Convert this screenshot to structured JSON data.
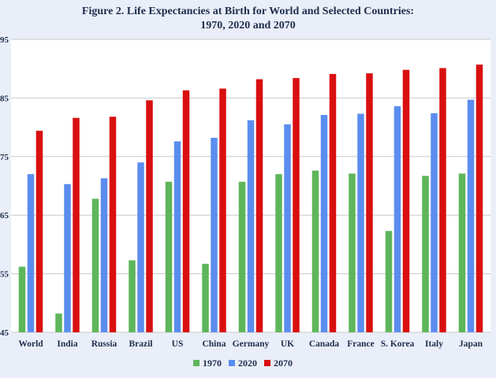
{
  "chart_data": {
    "type": "bar",
    "title_line1": "Figure 2. Life Expectancies at Birth for World and Selected Countries:",
    "title_line2": "1970, 2020 and 2070",
    "categories": [
      "World",
      "India",
      "Russia",
      "Brazil",
      "US",
      "China",
      "Germany",
      "UK",
      "Canada",
      "France",
      "S. Korea",
      "Italy",
      "Japan"
    ],
    "series": [
      {
        "name": "1970",
        "color": "#5eb65b",
        "values": [
          56.2,
          48.2,
          67.8,
          57.3,
          70.7,
          56.7,
          70.7,
          72.0,
          72.6,
          72.1,
          62.3,
          71.7,
          72.1
        ]
      },
      {
        "name": "2020",
        "color": "#5b8def",
        "values": [
          72.0,
          70.3,
          71.3,
          74.0,
          77.6,
          78.2,
          81.2,
          80.5,
          82.1,
          82.3,
          83.6,
          82.4,
          84.7
        ]
      },
      {
        "name": "2070",
        "color": "#d90f10",
        "values": [
          79.4,
          81.6,
          81.8,
          84.6,
          86.3,
          86.6,
          88.2,
          88.4,
          89.1,
          89.2,
          89.8,
          90.1,
          90.7
        ]
      }
    ],
    "yticks": [
      45,
      55,
      65,
      75,
      85,
      95
    ],
    "ylim": [
      45,
      95
    ],
    "grid": true,
    "legend_position": "bottom-center"
  }
}
